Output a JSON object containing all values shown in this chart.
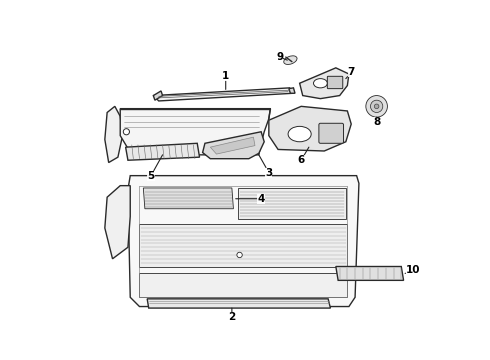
{
  "background_color": "#ffffff",
  "line_color": "#2a2a2a",
  "label_color": "#000000",
  "lw_main": 1.0,
  "lw_thin": 0.6,
  "label_fontsize": 7.5
}
